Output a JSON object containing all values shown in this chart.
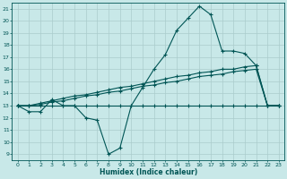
{
  "xlabel": "Humidex (Indice chaleur)",
  "bg_color": "#c8e8e8",
  "grid_color": "#aacccc",
  "line_color": "#005555",
  "xlim": [
    -0.5,
    23.5
  ],
  "ylim": [
    8.5,
    21.5
  ],
  "yticks": [
    9,
    10,
    11,
    12,
    13,
    14,
    15,
    16,
    17,
    18,
    19,
    20,
    21
  ],
  "xticks": [
    0,
    1,
    2,
    3,
    4,
    5,
    6,
    7,
    8,
    9,
    10,
    11,
    12,
    13,
    14,
    15,
    16,
    17,
    18,
    19,
    20,
    21,
    22,
    23
  ],
  "series": [
    [
      13.0,
      12.5,
      12.5,
      13.5,
      13.0,
      13.0,
      12.0,
      11.8,
      9.0,
      9.5,
      13.0,
      14.5,
      16.0,
      17.2,
      19.2,
      20.2,
      21.2,
      20.5,
      17.5,
      17.5,
      17.3,
      16.3,
      13.0,
      13.0
    ],
    [
      13.0,
      13.0,
      13.0,
      13.0,
      13.0,
      13.0,
      13.0,
      13.0,
      13.0,
      13.0,
      13.0,
      13.0,
      13.0,
      13.0,
      13.0,
      13.0,
      13.0,
      13.0,
      13.0,
      13.0,
      13.0,
      13.0,
      13.0,
      13.0
    ],
    [
      13.0,
      13.0,
      13.2,
      13.4,
      13.6,
      13.8,
      13.9,
      14.1,
      14.3,
      14.5,
      14.6,
      14.8,
      15.0,
      15.2,
      15.4,
      15.5,
      15.7,
      15.8,
      16.0,
      16.0,
      16.2,
      16.3,
      13.0,
      13.0
    ],
    [
      13.0,
      13.0,
      13.1,
      13.3,
      13.4,
      13.6,
      13.8,
      13.9,
      14.1,
      14.2,
      14.4,
      14.6,
      14.7,
      14.9,
      15.0,
      15.2,
      15.4,
      15.5,
      15.6,
      15.8,
      15.9,
      16.0,
      13.0,
      13.0
    ]
  ]
}
